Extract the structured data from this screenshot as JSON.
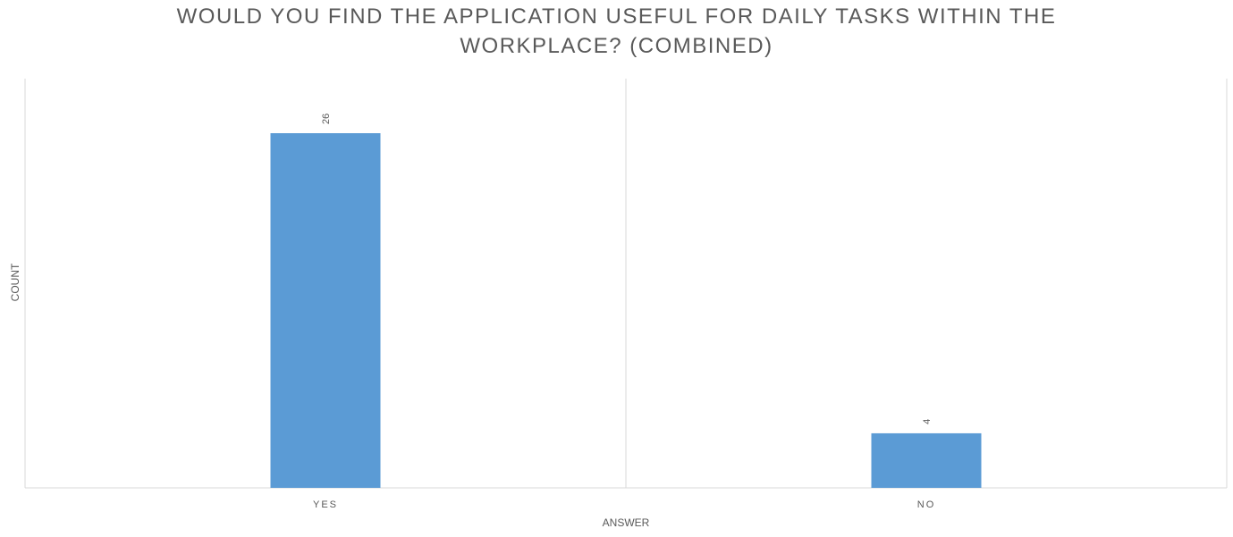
{
  "chart_data": {
    "type": "bar",
    "title_lines": [
      "WOULD YOU FIND THE APPLICATION USEFUL FOR DAILY TASKS WITHIN THE",
      "WORKPLACE? (COMBINED)"
    ],
    "categories": [
      "YES",
      "NO"
    ],
    "values": [
      26,
      4
    ],
    "data_labels": [
      "26",
      "4"
    ],
    "xlabel": "ANSWER",
    "ylabel": "COUNT",
    "ylim": [
      0,
      30
    ],
    "grid": "vertical category separators",
    "legend": "none",
    "bar_color": "#5B9BD5",
    "grid_color": "#D9D9D9"
  }
}
